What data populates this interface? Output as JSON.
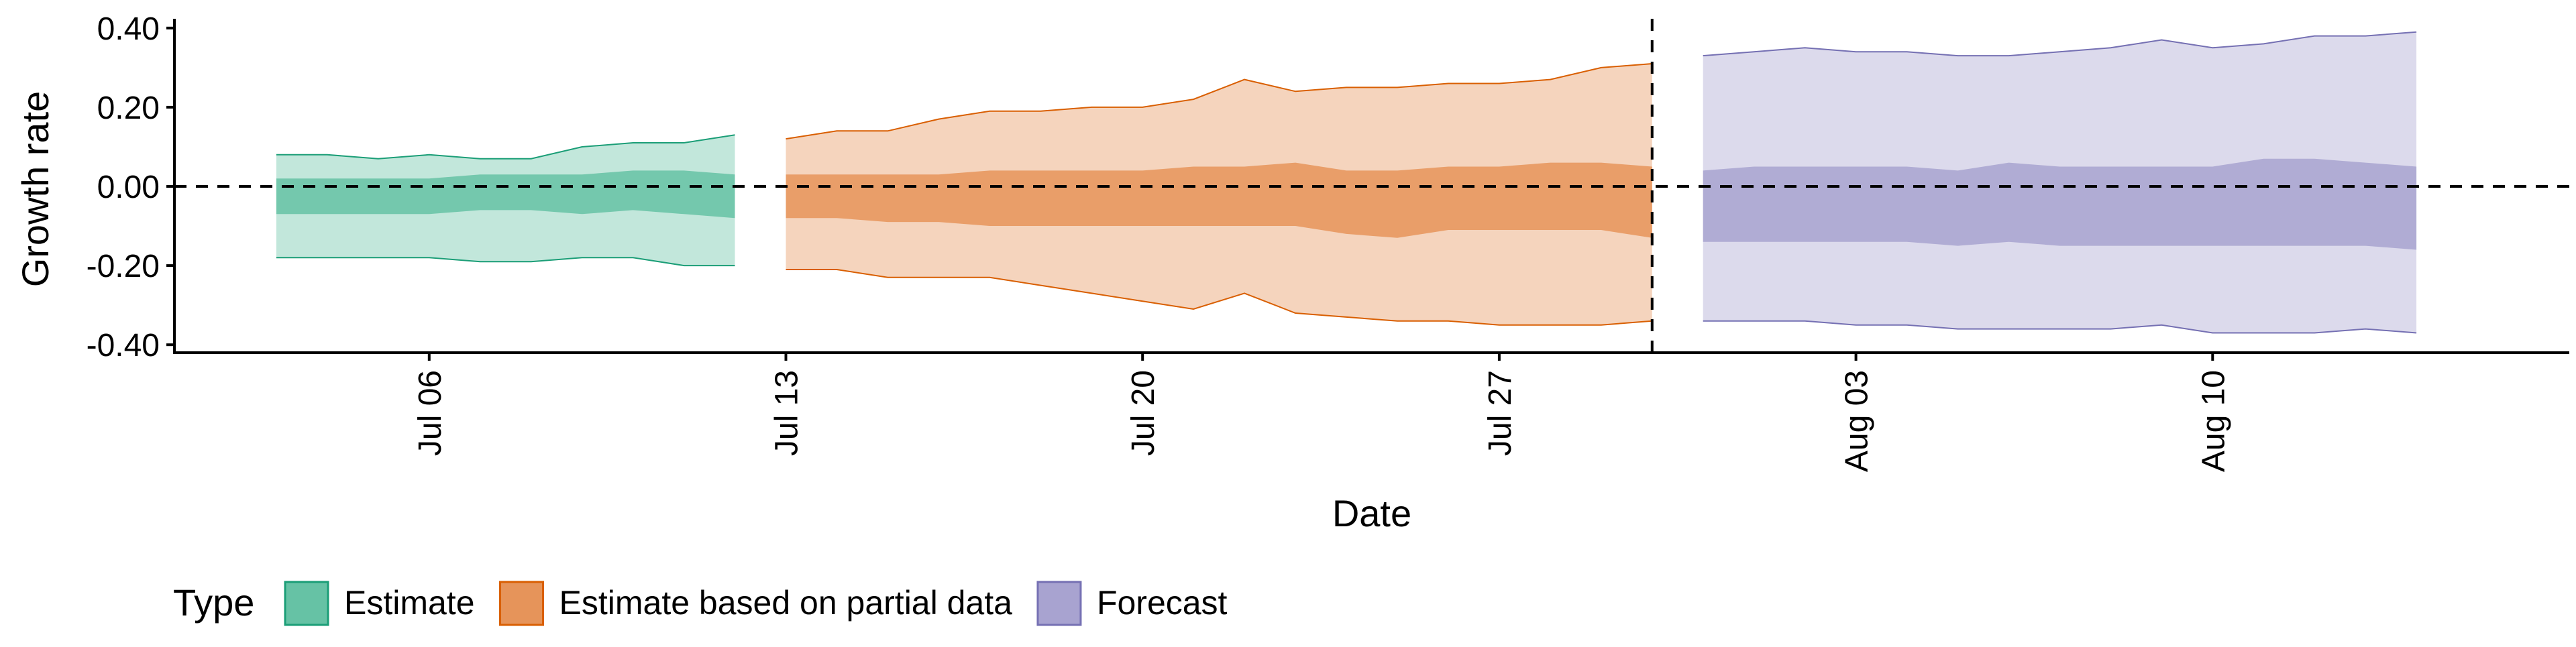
{
  "chart_data": {
    "type": "area",
    "xlabel": "Date",
    "ylabel": "Growth rate",
    "ylim": [
      -0.42,
      0.42
    ],
    "y_ticks": [
      0.4,
      0.2,
      0.0,
      -0.2,
      -0.4
    ],
    "y_tick_labels": [
      "0.40",
      "0.20",
      "0.00",
      "-0.20",
      "-0.40"
    ],
    "xlim": [
      "2020-07-01",
      "2020-08-17"
    ],
    "x_ticks": [
      "2020-07-06",
      "2020-07-13",
      "2020-07-20",
      "2020-07-27",
      "2020-08-03",
      "2020-08-10"
    ],
    "x_tick_labels": [
      "Jul 06",
      "Jul 13",
      "Jul 20",
      "Jul 27",
      "Aug 03",
      "Aug 10"
    ],
    "hlines": [
      0
    ],
    "vlines": [
      "2020-07-30"
    ],
    "grid": false,
    "legend": {
      "position": "bottom-left",
      "title": "Type",
      "entries": [
        "Estimate",
        "Estimate based on partial data",
        "Forecast"
      ]
    },
    "series": [
      {
        "name": "Estimate",
        "fill": "#66c2a5",
        "line": "#1b9e77",
        "x": [
          "2020-07-03",
          "2020-07-04",
          "2020-07-05",
          "2020-07-06",
          "2020-07-07",
          "2020-07-08",
          "2020-07-09",
          "2020-07-10",
          "2020-07-11",
          "2020-07-12"
        ],
        "upper_90": [
          0.08,
          0.08,
          0.07,
          0.08,
          0.07,
          0.07,
          0.1,
          0.11,
          0.11,
          0.13
        ],
        "upper_50": [
          0.02,
          0.02,
          0.02,
          0.02,
          0.03,
          0.03,
          0.03,
          0.04,
          0.04,
          0.03
        ],
        "lower_50": [
          -0.07,
          -0.07,
          -0.07,
          -0.07,
          -0.06,
          -0.06,
          -0.07,
          -0.06,
          -0.07,
          -0.08
        ],
        "lower_90": [
          -0.18,
          -0.18,
          -0.18,
          -0.18,
          -0.19,
          -0.19,
          -0.18,
          -0.18,
          -0.2,
          -0.2
        ]
      },
      {
        "name": "Estimate based on partial data",
        "fill": "#e6945a",
        "line": "#d95f02",
        "x": [
          "2020-07-13",
          "2020-07-14",
          "2020-07-15",
          "2020-07-16",
          "2020-07-17",
          "2020-07-18",
          "2020-07-19",
          "2020-07-20",
          "2020-07-21",
          "2020-07-22",
          "2020-07-23",
          "2020-07-24",
          "2020-07-25",
          "2020-07-26",
          "2020-07-27",
          "2020-07-28",
          "2020-07-29",
          "2020-07-30"
        ],
        "upper_90": [
          0.12,
          0.14,
          0.14,
          0.17,
          0.19,
          0.19,
          0.2,
          0.2,
          0.22,
          0.27,
          0.24,
          0.25,
          0.25,
          0.26,
          0.26,
          0.27,
          0.3,
          0.31
        ],
        "upper_50": [
          0.03,
          0.03,
          0.03,
          0.03,
          0.04,
          0.04,
          0.04,
          0.04,
          0.05,
          0.05,
          0.06,
          0.04,
          0.04,
          0.05,
          0.05,
          0.06,
          0.06,
          0.05
        ],
        "lower_50": [
          -0.08,
          -0.08,
          -0.09,
          -0.09,
          -0.1,
          -0.1,
          -0.1,
          -0.1,
          -0.1,
          -0.1,
          -0.1,
          -0.12,
          -0.13,
          -0.11,
          -0.11,
          -0.11,
          -0.11,
          -0.13
        ],
        "lower_90": [
          -0.21,
          -0.21,
          -0.23,
          -0.23,
          -0.23,
          -0.25,
          -0.27,
          -0.29,
          -0.31,
          -0.27,
          -0.32,
          -0.33,
          -0.34,
          -0.34,
          -0.35,
          -0.35,
          -0.35,
          -0.34
        ]
      },
      {
        "name": "Forecast",
        "fill": "#a8a3d0",
        "line": "#7570b3",
        "x": [
          "2020-07-31",
          "2020-08-01",
          "2020-08-02",
          "2020-08-03",
          "2020-08-04",
          "2020-08-05",
          "2020-08-06",
          "2020-08-07",
          "2020-08-08",
          "2020-08-09",
          "2020-08-10",
          "2020-08-11",
          "2020-08-12",
          "2020-08-13",
          "2020-08-14"
        ],
        "upper_90": [
          0.33,
          0.34,
          0.35,
          0.34,
          0.34,
          0.33,
          0.33,
          0.34,
          0.35,
          0.37,
          0.35,
          0.36,
          0.38,
          0.38,
          0.39
        ],
        "upper_50": [
          0.04,
          0.05,
          0.05,
          0.05,
          0.05,
          0.04,
          0.06,
          0.05,
          0.05,
          0.05,
          0.05,
          0.07,
          0.07,
          0.06,
          0.05
        ],
        "lower_50": [
          -0.14,
          -0.14,
          -0.14,
          -0.14,
          -0.14,
          -0.15,
          -0.14,
          -0.15,
          -0.15,
          -0.15,
          -0.15,
          -0.15,
          -0.15,
          -0.15,
          -0.16
        ],
        "lower_90": [
          -0.34,
          -0.34,
          -0.34,
          -0.35,
          -0.35,
          -0.36,
          -0.36,
          -0.36,
          -0.36,
          -0.35,
          -0.37,
          -0.37,
          -0.37,
          -0.36,
          -0.37
        ]
      }
    ]
  }
}
